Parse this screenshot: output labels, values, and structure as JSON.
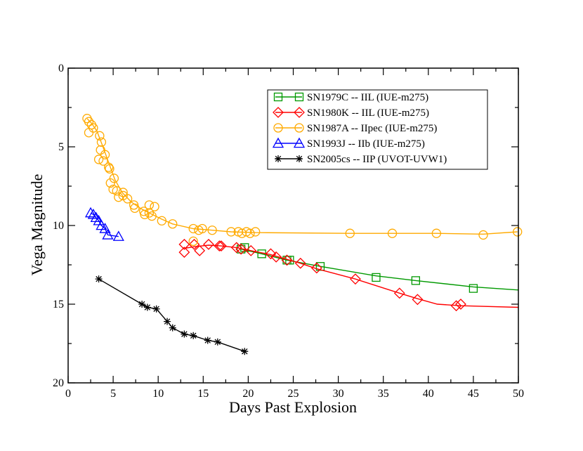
{
  "chart_data": {
    "type": "line",
    "title": "",
    "xlabel": "Days Past Explosion",
    "ylabel": "Vega Magnitude",
    "xlim": [
      0,
      50
    ],
    "ylim": [
      0,
      20
    ],
    "y_inverted": true,
    "grid": false,
    "legend_position": "top-right",
    "xticks": [
      0,
      5,
      10,
      15,
      20,
      25,
      30,
      35,
      40,
      45,
      50
    ],
    "yticks": [
      0,
      5,
      10,
      15,
      20
    ],
    "series": [
      {
        "name": "SN1979C -- IIL (IUE-m275)",
        "color": "#009900",
        "marker": "square",
        "points": [
          [
            19.2,
            11.5
          ],
          [
            19.6,
            11.4
          ],
          [
            21.5,
            11.8
          ],
          [
            24.3,
            12.2
          ],
          [
            24.6,
            12.2
          ],
          [
            28.0,
            12.6
          ],
          [
            34.2,
            13.3
          ],
          [
            38.6,
            13.5
          ],
          [
            45.0,
            14.0
          ]
        ],
        "curve": [
          [
            19.2,
            11.5
          ],
          [
            21.5,
            11.8
          ],
          [
            24.3,
            12.2
          ],
          [
            28.0,
            12.6
          ],
          [
            34.2,
            13.2
          ],
          [
            38.6,
            13.5
          ],
          [
            45.0,
            13.9
          ],
          [
            50.0,
            14.1
          ]
        ]
      },
      {
        "name": "SN1980K -- IIL (IUE-m275)",
        "color": "#ff0000",
        "marker": "diamond",
        "points": [
          [
            12.9,
            11.2
          ],
          [
            12.9,
            11.7
          ],
          [
            14.0,
            11.2
          ],
          [
            14.6,
            11.6
          ],
          [
            15.6,
            11.2
          ],
          [
            16.8,
            11.3
          ],
          [
            17.0,
            11.3
          ],
          [
            18.7,
            11.4
          ],
          [
            19.2,
            11.5
          ],
          [
            20.3,
            11.6
          ],
          [
            22.5,
            11.8
          ],
          [
            23.1,
            12.0
          ],
          [
            24.3,
            12.2
          ],
          [
            25.8,
            12.4
          ],
          [
            27.6,
            12.7
          ],
          [
            31.9,
            13.4
          ],
          [
            36.8,
            14.3
          ],
          [
            38.8,
            14.7
          ],
          [
            43.1,
            15.1
          ],
          [
            43.6,
            15.0
          ]
        ],
        "curve": [
          [
            12.9,
            11.45
          ],
          [
            14.0,
            11.35
          ],
          [
            15.6,
            11.25
          ],
          [
            17.0,
            11.3
          ],
          [
            18.7,
            11.4
          ],
          [
            20.3,
            11.6
          ],
          [
            22.5,
            11.85
          ],
          [
            24.3,
            12.15
          ],
          [
            25.8,
            12.4
          ],
          [
            27.6,
            12.75
          ],
          [
            31.9,
            13.4
          ],
          [
            36.8,
            14.3
          ],
          [
            38.8,
            14.65
          ],
          [
            41.0,
            15.0
          ],
          [
            43.6,
            15.1
          ],
          [
            50.0,
            15.2
          ]
        ]
      },
      {
        "name": "SN1987A -- IIpec (IUE-m275)",
        "color": "#ffaa00",
        "marker": "circle",
        "points": [
          [
            2.1,
            3.2
          ],
          [
            2.3,
            3.4
          ],
          [
            2.6,
            3.6
          ],
          [
            2.3,
            4.1
          ],
          [
            2.8,
            3.8
          ],
          [
            3.5,
            4.3
          ],
          [
            3.7,
            4.7
          ],
          [
            3.6,
            5.2
          ],
          [
            4.1,
            5.5
          ],
          [
            3.4,
            5.8
          ],
          [
            3.9,
            5.9
          ],
          [
            4.5,
            6.3
          ],
          [
            4.6,
            6.4
          ],
          [
            5.1,
            7.0
          ],
          [
            4.7,
            7.3
          ],
          [
            5.0,
            7.7
          ],
          [
            5.4,
            7.8
          ],
          [
            5.6,
            8.2
          ],
          [
            6.1,
            8.1
          ],
          [
            6.1,
            7.9
          ],
          [
            6.6,
            8.3
          ],
          [
            7.3,
            8.7
          ],
          [
            7.4,
            8.9
          ],
          [
            8.4,
            9.1
          ],
          [
            8.5,
            9.3
          ],
          [
            9.0,
            9.2
          ],
          [
            9.3,
            9.4
          ],
          [
            9.0,
            8.7
          ],
          [
            9.6,
            8.8
          ],
          [
            10.4,
            9.7
          ],
          [
            11.6,
            9.9
          ],
          [
            13.9,
            10.2
          ],
          [
            14.5,
            10.3
          ],
          [
            14.9,
            10.2
          ],
          [
            13.9,
            11.0
          ],
          [
            16.0,
            10.3
          ],
          [
            18.1,
            10.4
          ],
          [
            18.9,
            10.4
          ],
          [
            19.3,
            10.5
          ],
          [
            19.8,
            10.4
          ],
          [
            20.2,
            10.5
          ],
          [
            20.8,
            10.4
          ],
          [
            31.3,
            10.5
          ],
          [
            36.0,
            10.5
          ],
          [
            40.9,
            10.5
          ],
          [
            46.1,
            10.6
          ],
          [
            49.9,
            10.4
          ]
        ],
        "curve": [
          [
            2.1,
            3.2
          ],
          [
            2.6,
            3.5
          ],
          [
            3.2,
            4.0
          ],
          [
            3.8,
            4.9
          ],
          [
            4.5,
            6.0
          ],
          [
            5.2,
            7.1
          ],
          [
            6.0,
            7.9
          ],
          [
            7.0,
            8.5
          ],
          [
            8.0,
            8.9
          ],
          [
            9.0,
            9.2
          ],
          [
            10.4,
            9.6
          ],
          [
            11.6,
            9.9
          ],
          [
            13.9,
            10.2
          ],
          [
            16.0,
            10.3
          ],
          [
            18.1,
            10.4
          ],
          [
            20.8,
            10.45
          ],
          [
            31.3,
            10.5
          ],
          [
            36.0,
            10.5
          ],
          [
            40.9,
            10.5
          ],
          [
            46.1,
            10.55
          ],
          [
            49.9,
            10.4
          ]
        ]
      },
      {
        "name": "SN1993J -- IIb (IUE-m275)",
        "color": "#0000ff",
        "marker": "triangle",
        "points": [
          [
            2.5,
            9.2
          ],
          [
            2.8,
            9.3
          ],
          [
            3.1,
            9.5
          ],
          [
            3.4,
            9.7
          ],
          [
            3.7,
            10.0
          ],
          [
            4.1,
            10.2
          ],
          [
            4.4,
            10.6
          ],
          [
            5.6,
            10.7
          ]
        ],
        "curve": [
          [
            2.5,
            9.2
          ],
          [
            2.8,
            9.3
          ],
          [
            3.1,
            9.5
          ],
          [
            3.4,
            9.7
          ],
          [
            3.7,
            10.0
          ],
          [
            4.1,
            10.2
          ],
          [
            4.4,
            10.6
          ],
          [
            5.6,
            10.7
          ]
        ]
      },
      {
        "name": "SN2005cs -- IIP (UVOT-UVW1)",
        "color": "#000000",
        "marker": "asterisk",
        "points": [
          [
            3.4,
            13.4
          ],
          [
            8.2,
            15.0
          ],
          [
            8.8,
            15.2
          ],
          [
            9.8,
            15.3
          ],
          [
            11.0,
            16.1
          ],
          [
            11.6,
            16.5
          ],
          [
            12.9,
            16.9
          ],
          [
            13.9,
            17.0
          ],
          [
            15.5,
            17.3
          ],
          [
            16.6,
            17.4
          ],
          [
            19.6,
            18.0
          ]
        ],
        "curve": [
          [
            3.4,
            13.4
          ],
          [
            8.2,
            15.0
          ],
          [
            8.8,
            15.2
          ],
          [
            9.8,
            15.3
          ],
          [
            11.0,
            16.1
          ],
          [
            11.6,
            16.5
          ],
          [
            12.9,
            16.9
          ],
          [
            13.9,
            17.0
          ],
          [
            15.5,
            17.3
          ],
          [
            16.6,
            17.4
          ],
          [
            19.6,
            18.0
          ]
        ]
      }
    ]
  }
}
